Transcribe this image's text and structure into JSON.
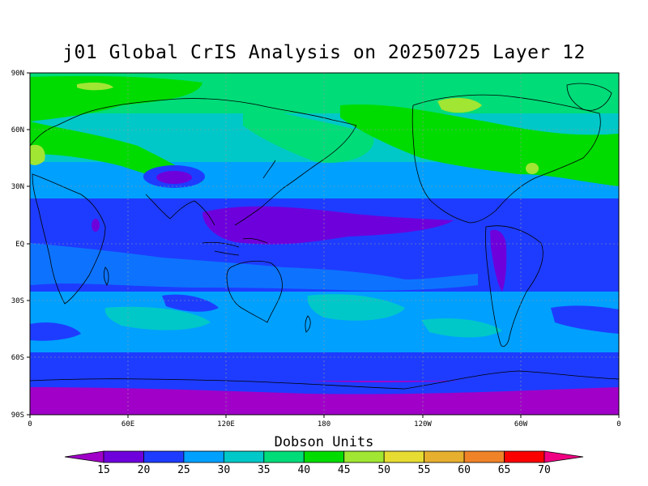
{
  "title": "j01 Global CrIS Analysis on 20250725 Layer 12",
  "colorbar": {
    "title": "Dobson Units",
    "levels": [
      "15",
      "20",
      "25",
      "30",
      "35",
      "40",
      "45",
      "50",
      "55",
      "60",
      "65",
      "70"
    ],
    "colors": [
      "#a000c8",
      "#6e00dc",
      "#1e3cff",
      "#00a0ff",
      "#00c8c8",
      "#00dc78",
      "#00dc00",
      "#a0e632",
      "#e6dc32",
      "#e6af2d",
      "#f08228",
      "#fa0000",
      "#f00082"
    ]
  },
  "axes": {
    "x_ticks": [
      "0",
      "60E",
      "120E",
      "180",
      "120W",
      "60W",
      "0"
    ],
    "y_ticks": [
      "90N",
      "60N",
      "30N",
      "EQ",
      "30S",
      "60S",
      "90S"
    ]
  },
  "chart_data": {
    "type": "heatmap",
    "title": "j01 Global CrIS Analysis on 20250725 Layer 12",
    "xlabel": "",
    "ylabel": "",
    "x_range": [
      0,
      360
    ],
    "y_range": [
      -90,
      90
    ],
    "colorbar_label": "Dobson Units",
    "colorbar_levels": [
      15,
      20,
      25,
      30,
      35,
      40,
      45,
      50,
      55,
      60,
      65,
      70
    ],
    "zonal_bands": [
      {
        "lat": [
          70,
          90
        ],
        "value": 40
      },
      {
        "lat": [
          45,
          70
        ],
        "value": 37
      },
      {
        "lat": [
          25,
          45
        ],
        "value": 33
      },
      {
        "lat": [
          15,
          25
        ],
        "value": 28
      },
      {
        "lat": [
          -20,
          15
        ],
        "value": 22
      },
      {
        "lat": [
          -45,
          -20
        ],
        "value": 26
      },
      {
        "lat": [
          -65,
          -45
        ],
        "value": 24
      },
      {
        "lat": [
          -90,
          -65
        ],
        "value": 17
      }
    ]
  }
}
